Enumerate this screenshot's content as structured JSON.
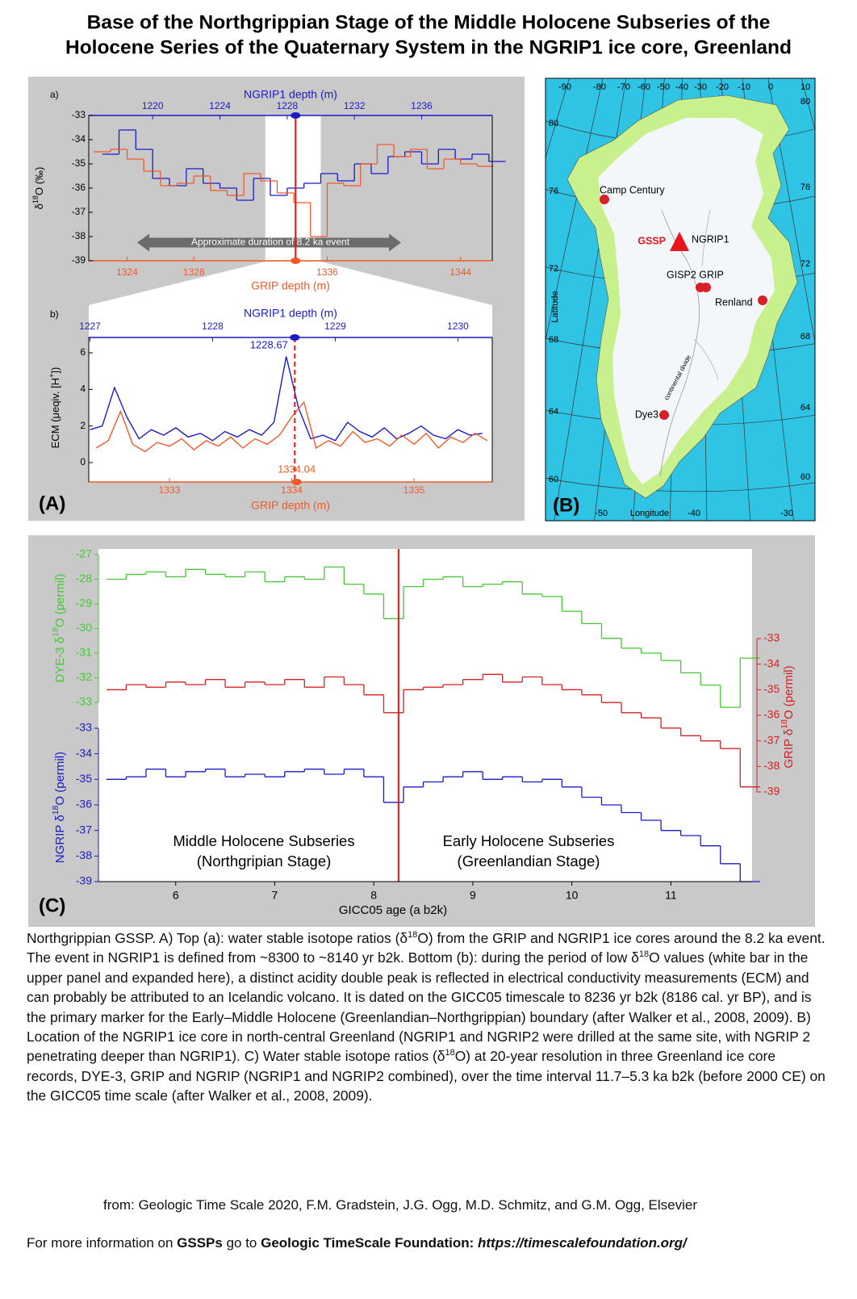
{
  "title": [
    "Base of the Northgrippian Stage of the Middle Holocene Subseries of the",
    "Holocene Series of the Quaternary System in the NGRIP1 ice core, Greenland"
  ],
  "panel_labels": [
    "(A)",
    "(B)",
    "(C)"
  ],
  "chart_data": [
    {
      "type": "line",
      "label": "a)",
      "stepped": true,
      "x_top_label": "NGRIP1 depth (m)",
      "x_bottom_label": "GRIP depth (m)",
      "ylabel": [
        "δ",
        "18",
        "O (‰)"
      ],
      "ylim": [
        -39,
        -33
      ],
      "yticks": [
        -33,
        -34,
        -35,
        -36,
        -37,
        -38,
        -39
      ],
      "xlim_top": [
        1216.2,
        1240.2
      ],
      "xticks_top": [
        1220,
        1224,
        1228,
        1232,
        1236
      ],
      "xlim_bottom": [
        1321.7,
        1345.9
      ],
      "xticks_bottom": [
        1324,
        1328,
        1336,
        1344
      ],
      "band": [
        1226.7,
        1230.0
      ],
      "marker": 1228.5,
      "annotation": "Approximate duration of 8.2 ka event",
      "series": [
        {
          "color": "#1b1bc8",
          "axis": "top",
          "x": [
            1217,
            1218,
            1219,
            1220,
            1221,
            1222,
            1223,
            1224,
            1225,
            1226,
            1227,
            1228,
            1229,
            1230,
            1231,
            1232,
            1233,
            1234,
            1235,
            1236,
            1237,
            1238,
            1239,
            1240
          ],
          "values": [
            -34.6,
            -33.6,
            -34.4,
            -35.6,
            -35.9,
            -35.2,
            -35.8,
            -36.0,
            -36.5,
            -35.6,
            -36.3,
            -36.0,
            -35.8,
            -35.4,
            -35.7,
            -35.0,
            -35.4,
            -34.7,
            -34.5,
            -35.0,
            -34.4,
            -34.8,
            -34.6,
            -34.9
          ]
        },
        {
          "color": "#f05a28",
          "axis": "bottom",
          "x": [
            1322,
            1323,
            1324,
            1325,
            1326,
            1327,
            1328,
            1329,
            1330,
            1331,
            1332,
            1333,
            1334,
            1335,
            1336,
            1337,
            1338,
            1339,
            1340,
            1341,
            1342,
            1343,
            1344,
            1345
          ],
          "values": [
            -34.5,
            -34.4,
            -34.8,
            -35.3,
            -35.9,
            -35.8,
            -35.5,
            -36.1,
            -36.3,
            -35.4,
            -35.7,
            -36.2,
            -36.6,
            -38.0,
            -35.8,
            -35.9,
            -35.0,
            -34.2,
            -34.7,
            -34.4,
            -35.2,
            -34.8,
            -35.0,
            -35.1
          ]
        }
      ]
    },
    {
      "type": "line",
      "label": "b)",
      "stepped": false,
      "x_top_label": "NGRIP1 depth (m)",
      "x_bottom_label": "GRIP depth (m)",
      "ylabel": [
        "ECM (μeqiv. [H",
        "+",
        "])"
      ],
      "ylim": [
        -1.06,
        6.84
      ],
      "yticks": [
        0,
        2,
        4,
        6
      ],
      "xlim_top": [
        1226.99,
        1230.28
      ],
      "xticks_top": [
        1227,
        1228,
        1229,
        1230
      ],
      "xlim_bottom": [
        1332.34,
        1335.64
      ],
      "xticks_bottom": [
        1333,
        1334,
        1335
      ],
      "marker": 1228.67,
      "marker_bottom": 1334.04,
      "dashed_marker": true,
      "series": [
        {
          "color": "#1b1bc8",
          "axis": "top",
          "x": [
            1227.0,
            1227.1,
            1227.2,
            1227.3,
            1227.4,
            1227.5,
            1227.6,
            1227.7,
            1227.8,
            1227.9,
            1228.0,
            1228.1,
            1228.2,
            1228.3,
            1228.4,
            1228.5,
            1228.6,
            1228.7,
            1228.8,
            1228.9,
            1229.0,
            1229.1,
            1229.2,
            1229.3,
            1229.4,
            1229.5,
            1229.6,
            1229.7,
            1229.8,
            1229.9,
            1230.0,
            1230.1,
            1230.2
          ],
          "values": [
            1.8,
            2.0,
            4.1,
            2.5,
            1.3,
            1.8,
            1.5,
            1.9,
            1.4,
            1.6,
            1.2,
            1.7,
            1.4,
            1.8,
            1.5,
            2.2,
            5.8,
            3.0,
            1.3,
            1.5,
            1.2,
            2.2,
            1.7,
            1.4,
            1.9,
            1.3,
            1.6,
            2.0,
            1.5,
            1.3,
            1.8,
            1.5,
            1.6
          ]
        },
        {
          "color": "#f05a28",
          "axis": "bottom",
          "x": [
            1332.4,
            1332.5,
            1332.6,
            1332.7,
            1332.8,
            1332.9,
            1333.0,
            1333.1,
            1333.2,
            1333.3,
            1333.4,
            1333.5,
            1333.6,
            1333.7,
            1333.8,
            1333.9,
            1334.0,
            1334.1,
            1334.2,
            1334.3,
            1334.4,
            1334.5,
            1334.6,
            1334.7,
            1334.8,
            1334.9,
            1335.0,
            1335.1,
            1335.2,
            1335.3,
            1335.4,
            1335.5,
            1335.6
          ],
          "values": [
            0.8,
            1.2,
            2.8,
            1.0,
            0.6,
            1.1,
            0.9,
            1.3,
            0.7,
            1.2,
            0.9,
            1.4,
            0.8,
            1.3,
            1.0,
            1.5,
            2.5,
            3.3,
            0.8,
            1.2,
            0.9,
            1.7,
            1.1,
            1.3,
            0.9,
            1.5,
            1.0,
            1.6,
            0.8,
            1.4,
            1.1,
            1.6,
            1.2
          ]
        }
      ]
    },
    {
      "type": "line",
      "stepped": true,
      "xlabel": "GICC05 age (a b2k)",
      "xlim": [
        5.22,
        11.82
      ],
      "xticks": [
        6,
        7,
        8,
        9,
        10,
        11
      ],
      "marker": 8.25,
      "annotations": [
        "Middle Holocene Subseries",
        "(Northgripian Stage)",
        "Early Holocene Subseries",
        "(Greenlandian Stage)"
      ],
      "x": [
        5.3,
        5.5,
        5.7,
        5.9,
        6.1,
        6.3,
        6.5,
        6.7,
        6.9,
        7.1,
        7.3,
        7.5,
        7.7,
        7.9,
        8.1,
        8.3,
        8.5,
        8.7,
        8.9,
        9.1,
        9.3,
        9.5,
        9.7,
        9.9,
        10.1,
        10.3,
        10.5,
        10.7,
        10.9,
        11.1,
        11.3,
        11.5,
        11.7
      ],
      "series": [
        {
          "color": "#44c933",
          "axis": "left",
          "ylabel": [
            "DYE-3 δ",
            "18",
            "O (permil)"
          ],
          "ylim": [
            -33,
            -27
          ],
          "yticks": [
            -27,
            -28,
            -29,
            -30,
            -31,
            -32,
            -33
          ],
          "values": [
            -28.0,
            -27.8,
            -27.7,
            -27.9,
            -27.6,
            -27.8,
            -27.9,
            -27.7,
            -28.1,
            -27.9,
            -28.0,
            -27.5,
            -28.2,
            -28.6,
            -29.6,
            -28.3,
            -28.0,
            -27.9,
            -28.3,
            -28.2,
            -28.1,
            -28.6,
            -28.7,
            -29.3,
            -29.8,
            -30.4,
            -30.8,
            -31.0,
            -31.3,
            -31.8,
            -32.3,
            -33.2,
            -31.2
          ]
        },
        {
          "color": "#d42222",
          "axis": "right",
          "ylabel": [
            "GRIP δ",
            "18",
            "O (permil)"
          ],
          "ylim": [
            -39,
            -33
          ],
          "yticks": [
            -33,
            -34,
            -35,
            -36,
            -37,
            -38,
            -39
          ],
          "values": [
            -35.0,
            -34.8,
            -34.9,
            -34.7,
            -34.8,
            -34.6,
            -34.9,
            -34.7,
            -34.8,
            -34.6,
            -34.9,
            -34.5,
            -34.8,
            -35.2,
            -35.9,
            -35.0,
            -34.9,
            -34.8,
            -34.6,
            -34.4,
            -34.7,
            -34.5,
            -34.8,
            -35.0,
            -35.2,
            -35.5,
            -35.9,
            -36.1,
            -36.5,
            -36.8,
            -37.0,
            -37.3,
            -38.8
          ]
        },
        {
          "color": "#1b1bc8",
          "axis": "left",
          "ylabel": [
            "NGRIP δ",
            "18",
            "O (permil)"
          ],
          "ylim": [
            -39,
            -33
          ],
          "yticks": [
            -33,
            -34,
            -35,
            -36,
            -37,
            -38,
            -39
          ],
          "values": [
            -35.0,
            -34.9,
            -34.6,
            -34.9,
            -34.7,
            -34.6,
            -34.9,
            -34.8,
            -34.9,
            -34.7,
            -34.6,
            -34.8,
            -34.6,
            -34.9,
            -35.9,
            -35.3,
            -35.1,
            -34.9,
            -34.7,
            -35.0,
            -34.9,
            -35.1,
            -35.0,
            -35.3,
            -35.7,
            -36.0,
            -36.3,
            -36.6,
            -37.0,
            -37.2,
            -37.6,
            -38.3,
            -39.0
          ]
        }
      ]
    }
  ],
  "map": {
    "lon_top": [
      "-90",
      "-80",
      "-70",
      "-60",
      "-50",
      "-40",
      "-30",
      "-20",
      "-10",
      "0",
      "10"
    ],
    "lat_left": [
      "80",
      "76",
      "72",
      "68",
      "64",
      "60"
    ],
    "lat_right": [
      "80",
      "76",
      "72",
      "68",
      "64",
      "60"
    ],
    "lon_bottom": [
      "-50",
      "-40",
      "-30"
    ],
    "xlabel": "Longitude",
    "ylabel": "Latitude",
    "sites": [
      "Camp Century",
      "NGRIP1",
      "GISP2 GRIP",
      "Renland",
      "Dye3"
    ],
    "gssp": "GSSP",
    "divide": "continental divide"
  },
  "caption": [
    "Northgrippian GSSP. A) Top (a): water stable isotope ratios (δ",
    "18",
    "O) from the GRIP and NGRIP1 ice cores around the 8.2 ka event. The event in NGRIP1 is defined from ~8300 to ~8140 yr b2k. Bottom (b): during the period of low δ",
    "18",
    "O values (white bar in the upper panel and expanded here), a distinct acidity double peak is reflected in electrical conductivity measurements (ECM) and can probably be attributed to an Icelandic volcano. It is dated on the GICC05 timescale to 8236 yr b2k (8186 cal. yr BP), and is the primary marker for the Early–Middle Holocene (Greenlandian–Northgrippian) boundary (after Walker et al., 2008, 2009). B) Location of the NGRIP1 ice core in north-central Greenland (NGRIP1 and NGRIP2 were drilled at the same site, with NGRIP 2 penetrating deeper than NGRIP1).  C) Water stable isotope ratios (δ",
    "18",
    "O) at 20-year resolution in three Greenland ice core records, DYE-3, GRIP and NGRIP (NGRIP1 and NGRIP2 combined), over the time interval 11.7–5.3 ka b2k (before 2000 CE) on the GICC05 time scale (after Walker et al., 2008, 2009)."
  ],
  "credit": "from: Geologic Time Scale 2020, F.M. Gradstein, J.G. Ogg, M.D. Schmitz, and G.M. Ogg, Elsevier",
  "footer": [
    "For more information on ",
    "GSSPs",
    " go to ",
    "Geologic TimeScale Foundation: ",
    "https://timescalefoundation.org/"
  ]
}
